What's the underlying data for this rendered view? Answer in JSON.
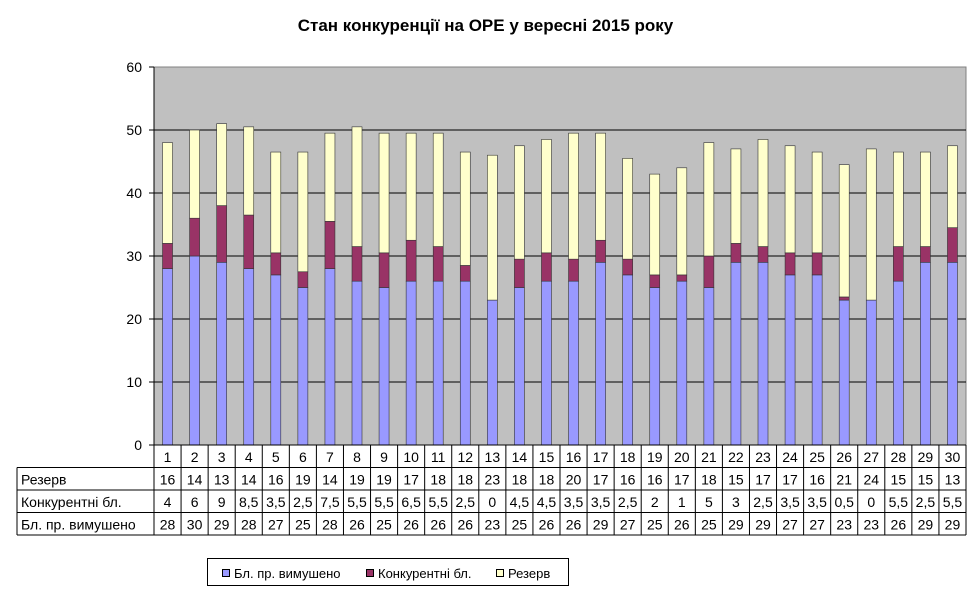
{
  "chart_data": {
    "type": "bar",
    "stacked": true,
    "title": "Стан конкуренції на ОРЕ  у вересні 2015 року",
    "categories": [
      "1",
      "2",
      "3",
      "4",
      "5",
      "6",
      "7",
      "8",
      "9",
      "10",
      "11",
      "12",
      "13",
      "14",
      "15",
      "16",
      "17",
      "18",
      "19",
      "20",
      "21",
      "22",
      "23",
      "24",
      "25",
      "26",
      "27",
      "28",
      "29",
      "30"
    ],
    "series": [
      {
        "name": "Бл. пр. вимушено",
        "color": "#9999ff",
        "values": [
          28,
          30,
          29,
          28,
          27,
          25,
          28,
          26,
          25,
          26,
          26,
          26,
          23,
          25,
          26,
          26,
          29,
          27,
          25,
          26,
          25,
          29,
          29,
          27,
          27,
          23,
          23,
          26,
          29,
          29
        ],
        "labels": [
          "28",
          "30",
          "29",
          "28",
          "27",
          "25",
          "28",
          "26",
          "25",
          "26",
          "26",
          "26",
          "23",
          "25",
          "26",
          "26",
          "29",
          "27",
          "25",
          "26",
          "25",
          "29",
          "29",
          "27",
          "27",
          "23",
          "23",
          "26",
          "29",
          "29"
        ]
      },
      {
        "name": "Конкурентні бл.",
        "color": "#993366",
        "values": [
          4,
          6,
          9,
          8.5,
          3.5,
          2.5,
          7.5,
          5.5,
          5.5,
          6.5,
          5.5,
          2.5,
          0,
          4.5,
          4.5,
          3.5,
          3.5,
          2.5,
          2,
          1,
          5,
          3,
          2.5,
          3.5,
          3.5,
          0.5,
          0,
          5.5,
          2.5,
          5.5
        ],
        "labels": [
          "4",
          "6",
          "9",
          "8,5",
          "3,5",
          "2,5",
          "7,5",
          "5,5",
          "5,5",
          "6,5",
          "5,5",
          "2,5",
          "0",
          "4,5",
          "4,5",
          "3,5",
          "3,5",
          "2,5",
          "2",
          "1",
          "5",
          "3",
          "2,5",
          "3,5",
          "3,5",
          "0,5",
          "0",
          "5,5",
          "2,5",
          "5,5"
        ]
      },
      {
        "name": "Резерв",
        "color": "#ffffcc",
        "values": [
          16,
          14,
          13,
          14,
          16,
          19,
          14,
          19,
          19,
          17,
          18,
          18,
          23,
          18,
          18,
          20,
          17,
          16,
          16,
          17,
          18,
          15,
          17,
          17,
          16,
          21,
          24,
          15,
          15,
          13
        ],
        "labels": [
          "16",
          "14",
          "13",
          "14",
          "16",
          "19",
          "14",
          "19",
          "19",
          "17",
          "18",
          "18",
          "23",
          "18",
          "18",
          "20",
          "17",
          "16",
          "16",
          "17",
          "18",
          "15",
          "17",
          "17",
          "16",
          "21",
          "24",
          "15",
          "15",
          "13"
        ]
      }
    ],
    "ylim": [
      0,
      60
    ],
    "yticks": [
      "0",
      "10",
      "20",
      "30",
      "40",
      "50",
      "60"
    ],
    "grid": true,
    "data_table": true,
    "legend_position": "bottom",
    "plot_bg": "#c0c0c0"
  }
}
